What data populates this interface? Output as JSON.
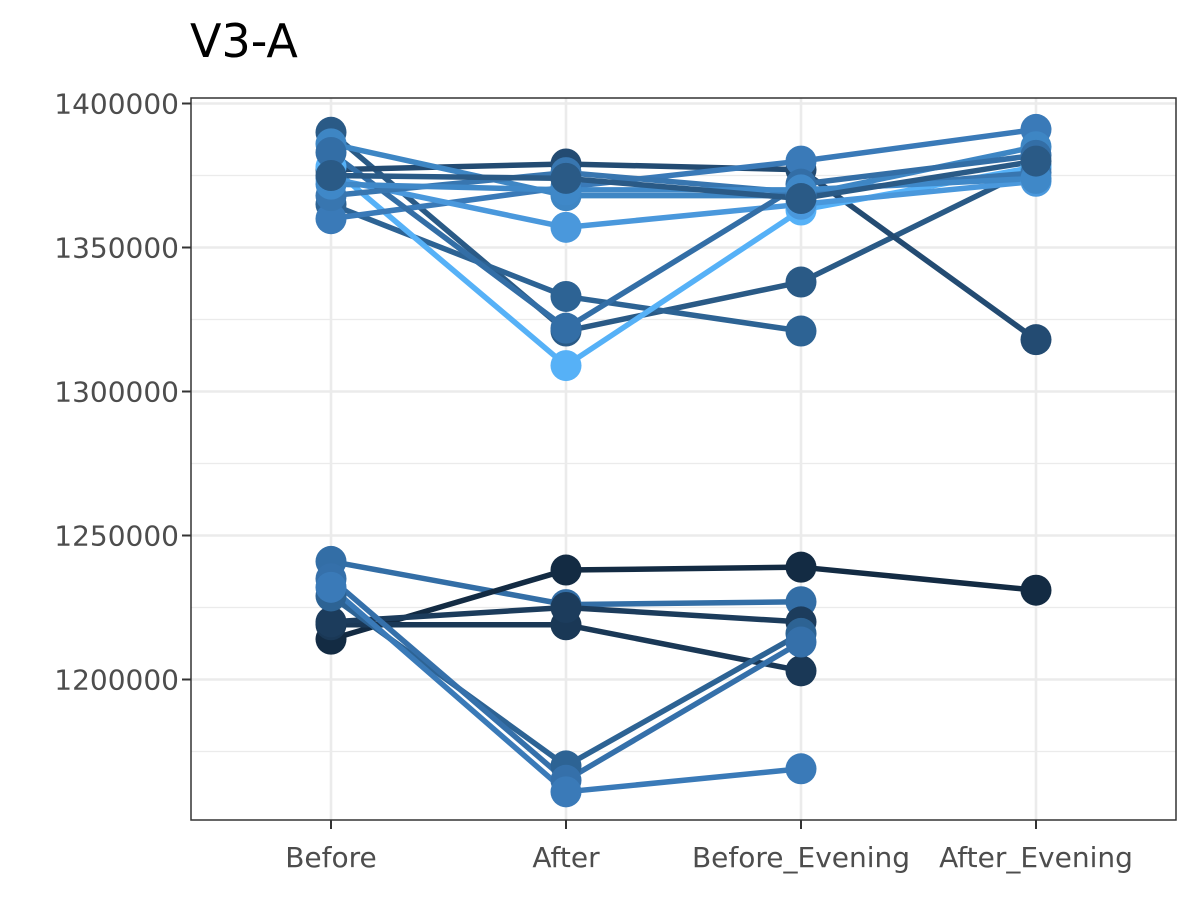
{
  "chart_data": {
    "type": "line",
    "title": "V3-A",
    "xlabel": "",
    "ylabel": "",
    "categories": [
      "Before",
      "After",
      "Before_Evening",
      "After_Evening"
    ],
    "ylim": [
      1150000,
      1400000
    ],
    "yticks": [
      1200000,
      1250000,
      1300000,
      1350000,
      1400000
    ],
    "ytick_labels": [
      "1200000",
      "1250000",
      "1300000",
      "1350000",
      "1400000"
    ],
    "grid": true,
    "legend": "none",
    "series": [
      {
        "color": "#2a5a86",
        "values": [
          1390000,
          1321000,
          1338000,
          1378000
        ]
      },
      {
        "color": "#234b72",
        "values": [
          1377000,
          1379000,
          1377000,
          1318000
        ]
      },
      {
        "color": "#2d6394",
        "values": [
          1365000,
          1333000,
          1321000,
          null
        ]
      },
      {
        "color": "#56b1f7",
        "values": [
          1378000,
          1309000,
          1363000,
          1378000
        ]
      },
      {
        "color": "#3a7ab8",
        "values": [
          1360000,
          1371000,
          1380000,
          1391000
        ]
      },
      {
        "color": "#4a98dc",
        "values": [
          1374000,
          1357000,
          1365000,
          1373000
        ]
      },
      {
        "color": "#3e86c4",
        "values": [
          1386000,
          1368000,
          1368000,
          1385000
        ]
      },
      {
        "color": "#336ea6",
        "values": [
          1383000,
          1322000,
          1372000,
          1382000
        ]
      },
      {
        "color": "#3876b0",
        "values": [
          1368000,
          1376000,
          1369000,
          1376000
        ]
      },
      {
        "color": "#3f88c8",
        "values": [
          1372000,
          1370000,
          1370000,
          1374000
        ]
      },
      {
        "color": "#2a5a86",
        "values": [
          1375000,
          1374000,
          1367000,
          1380000
        ]
      },
      {
        "color": "#336ea6",
        "values": [
          1241000,
          1226000,
          1227000,
          null
        ]
      },
      {
        "color": "#132b43",
        "values": [
          1214000,
          1238000,
          1239000,
          1231000
        ]
      },
      {
        "color": "#1a3856",
        "values": [
          1219000,
          1219000,
          1203000,
          null
        ]
      },
      {
        "color": "#1c3c5c",
        "values": [
          1220000,
          1225000,
          1220000,
          null
        ]
      },
      {
        "color": "#2d6394",
        "values": [
          1229000,
          1170000,
          1216000,
          null
        ]
      },
      {
        "color": "#3570aa",
        "values": [
          1235000,
          1165000,
          1213000,
          null
        ]
      },
      {
        "color": "#3a7ab8",
        "values": [
          1232000,
          1161000,
          1169000,
          null
        ]
      }
    ]
  }
}
